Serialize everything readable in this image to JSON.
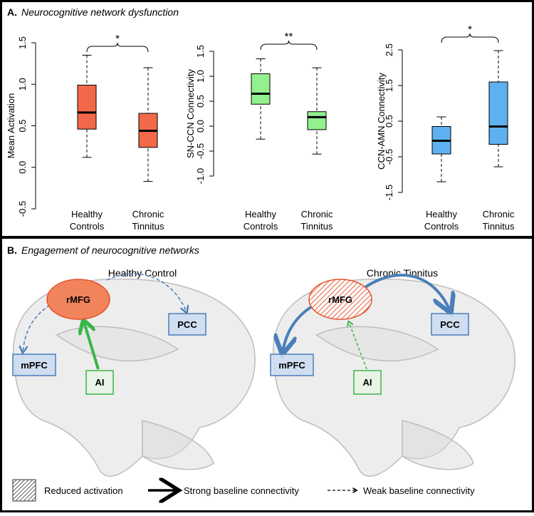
{
  "panel_a": {
    "label": "A.",
    "title": "Neurocognitive network dysfunction"
  },
  "chart_data": [
    {
      "type": "box",
      "y_label": "Mean Activation",
      "categories": [
        "Healthy Controls",
        "Chronic Tinnitus"
      ],
      "color": "#f2694a",
      "boxes": [
        {
          "min": 0.12,
          "q1": 0.46,
          "median": 0.66,
          "q3": 0.99,
          "max": 1.35
        },
        {
          "min": -0.17,
          "q1": 0.24,
          "median": 0.44,
          "q3": 0.65,
          "max": 1.2
        }
      ],
      "ylim": [
        -0.5,
        1.5
      ],
      "yticks": [
        -0.5,
        {
          "value": 0,
          "label": "0.0"
        },
        0.5,
        {
          "value": 1,
          "label": "1.0"
        },
        1.5
      ],
      "significance": "*"
    },
    {
      "type": "box",
      "y_label": "SN-CCN Connectivity",
      "categories": [
        "Healthy Controls",
        "Chronic Tinnitus"
      ],
      "color": "#93f08f",
      "boxes": [
        {
          "min": -0.26,
          "q1": 0.44,
          "median": 0.65,
          "q3": 1.05,
          "max": 1.35
        },
        {
          "min": -0.56,
          "q1": -0.07,
          "median": 0.18,
          "q3": 0.29,
          "max": 1.17
        }
      ],
      "ylim": [
        -1,
        1.5
      ],
      "yticks": [
        {
          "value": -1,
          "label": "-1.0"
        },
        -0.5,
        {
          "value": 0,
          "label": "0.0"
        },
        0.5,
        {
          "value": 1,
          "label": "1.0"
        },
        1.5
      ],
      "significance": "**"
    },
    {
      "type": "box",
      "y_label": "CCN-AMN Connectivity",
      "categories": [
        "Healthy Controls",
        "Chronic Tinnitus"
      ],
      "color": "#5eb1f0",
      "boxes": [
        {
          "min": -1.2,
          "q1": -0.42,
          "median": -0.05,
          "q3": 0.35,
          "max": 0.62
        },
        {
          "min": -0.78,
          "q1": -0.15,
          "median": 0.35,
          "q3": 1.6,
          "max": 2.48
        }
      ],
      "ylim": [
        -1.5,
        2.5
      ],
      "yticks": [
        -1.5,
        -0.5,
        0.5,
        1.5,
        2.5
      ],
      "significance": "*"
    }
  ],
  "panel_b": {
    "label": "B.",
    "title": "Engagement of neurocognitive networks",
    "diagrams": [
      {
        "title": "Healthy Control",
        "nodes": [
          "rMFG",
          "PCC",
          "mPFC",
          "AI"
        ]
      },
      {
        "title": "Chronic Tinnitus",
        "nodes": [
          "rMFG",
          "PCC",
          "mPFC",
          "AI"
        ]
      }
    ],
    "legend": [
      "Reduced activation",
      "Strong baseline connectivity",
      "Weak baseline connectivity"
    ]
  }
}
